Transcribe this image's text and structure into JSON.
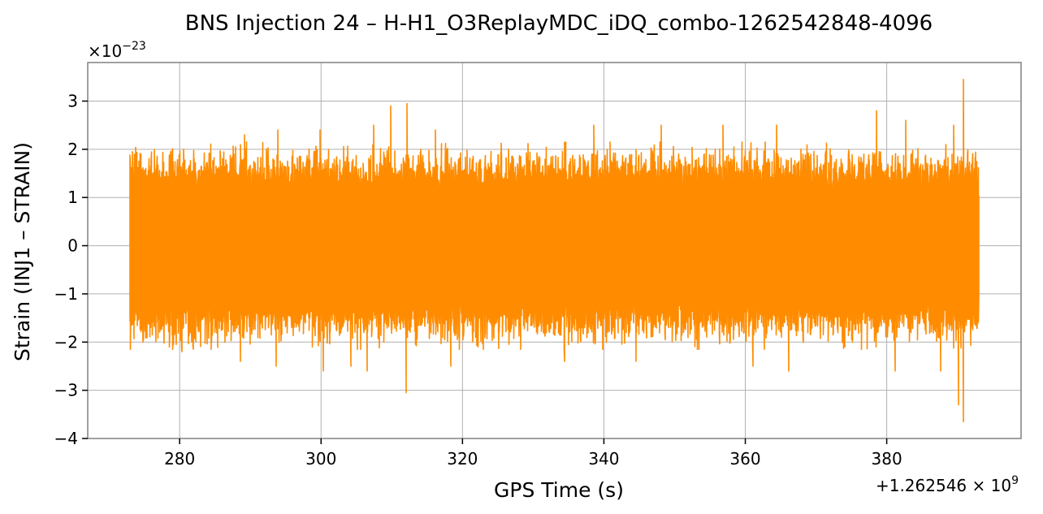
{
  "chart_data": {
    "type": "line",
    "title": "BNS Injection 24 – H-H1_O3ReplayMDC_iDQ_combo-1262542848-4096",
    "xlabel": "GPS Time (s)",
    "ylabel": "Strain (INJ1 – STRAIN)",
    "x_offset_label": "+1.262546 × 10",
    "x_offset_exp": "9",
    "y_scale_label": "×10",
    "y_scale_exp": "−23",
    "xlim": [
      267,
      399
    ],
    "ylim": [
      -4,
      3.8
    ],
    "xticks": [
      280,
      300,
      320,
      340,
      360,
      380
    ],
    "yticks": [
      -4,
      -3,
      -2,
      -1,
      0,
      1,
      2,
      3
    ],
    "ytick_labels": [
      "−4",
      "−3",
      "−2",
      "−1",
      "0",
      "1",
      "2",
      "3"
    ],
    "grid": true,
    "series": [
      {
        "color": "#ff8c00",
        "x_start": 273.0,
        "x_end": 393.0,
        "typical_upper": 1.7,
        "typical_lower": -1.7,
        "peaks": [
          {
            "x": 273.3,
            "y": 1.95
          },
          {
            "x": 280.5,
            "y": 2.0
          },
          {
            "x": 289.2,
            "y": 2.3
          },
          {
            "x": 293.9,
            "y": 2.4
          },
          {
            "x": 299.8,
            "y": 2.4
          },
          {
            "x": 307.4,
            "y": 2.5
          },
          {
            "x": 309.8,
            "y": 2.9
          },
          {
            "x": 312.1,
            "y": 2.95
          },
          {
            "x": 316.2,
            "y": 2.4
          },
          {
            "x": 338.6,
            "y": 2.5
          },
          {
            "x": 348.1,
            "y": 2.5
          },
          {
            "x": 356.8,
            "y": 2.5
          },
          {
            "x": 364.4,
            "y": 2.5
          },
          {
            "x": 378.6,
            "y": 2.8
          },
          {
            "x": 382.7,
            "y": 2.6
          },
          {
            "x": 389.5,
            "y": 2.5
          },
          {
            "x": 390.8,
            "y": 3.45
          }
        ],
        "troughs": [
          {
            "x": 274.8,
            "y": -2.0
          },
          {
            "x": 280.3,
            "y": -2.2
          },
          {
            "x": 288.6,
            "y": -2.4
          },
          {
            "x": 293.6,
            "y": -2.5
          },
          {
            "x": 300.3,
            "y": -2.6
          },
          {
            "x": 304.2,
            "y": -2.5
          },
          {
            "x": 306.5,
            "y": -2.6
          },
          {
            "x": 312.0,
            "y": -3.05
          },
          {
            "x": 318.4,
            "y": -2.5
          },
          {
            "x": 334.4,
            "y": -2.4
          },
          {
            "x": 344.6,
            "y": -2.4
          },
          {
            "x": 361.1,
            "y": -2.5
          },
          {
            "x": 366.2,
            "y": -2.6
          },
          {
            "x": 381.2,
            "y": -2.6
          },
          {
            "x": 387.6,
            "y": -2.6
          },
          {
            "x": 390.2,
            "y": -3.3
          },
          {
            "x": 390.9,
            "y": -3.65
          }
        ]
      }
    ]
  }
}
